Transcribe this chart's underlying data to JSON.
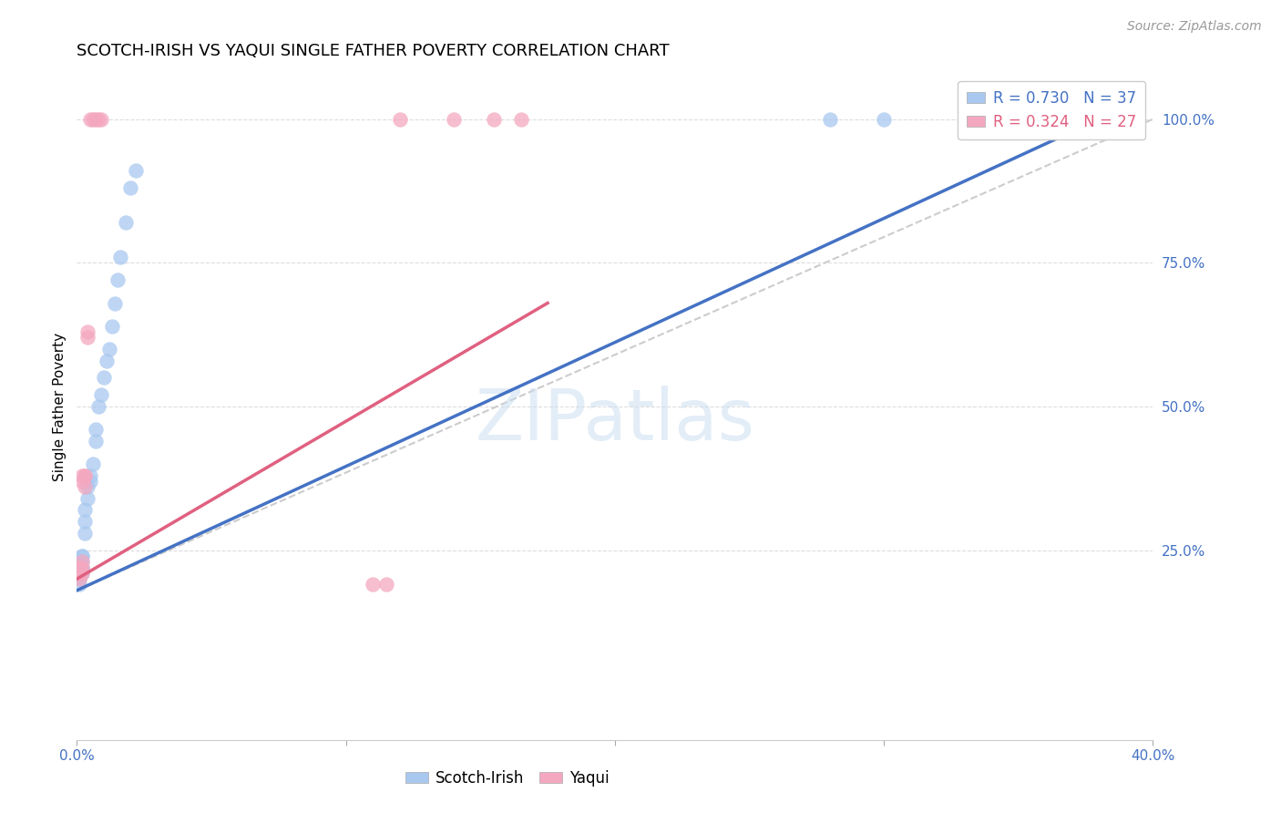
{
  "title": "SCOTCH-IRISH VS YAQUI SINGLE FATHER POVERTY CORRELATION CHART",
  "source": "Source: ZipAtlas.com",
  "ylabel": "Single Father Poverty",
  "legend_blue": {
    "R": 0.73,
    "N": 37,
    "label": "Scotch-Irish"
  },
  "legend_pink": {
    "R": 0.324,
    "N": 27,
    "label": "Yaqui"
  },
  "blue_color": "#A8C8F0",
  "pink_color": "#F4A8C0",
  "line_blue": "#4472C4",
  "line_pink": "#E06080",
  "diag_color": "#CCCCCC",
  "watermark": "ZIPatlas",
  "blue_points": [
    [
      0.001,
      0.22
    ],
    [
      0.001,
      0.23
    ],
    [
      0.001,
      0.22
    ],
    [
      0.001,
      0.21
    ],
    [
      0.001,
      0.2
    ],
    [
      0.001,
      0.19
    ],
    [
      0.002,
      0.21
    ],
    [
      0.002,
      0.22
    ],
    [
      0.002,
      0.23
    ],
    [
      0.002,
      0.24
    ],
    [
      0.002,
      0.24
    ],
    [
      0.002,
      0.22
    ],
    [
      0.003,
      0.28
    ],
    [
      0.003,
      0.3
    ],
    [
      0.003,
      0.32
    ],
    [
      0.004,
      0.34
    ],
    [
      0.004,
      0.36
    ],
    [
      0.005,
      0.37
    ],
    [
      0.005,
      0.38
    ],
    [
      0.006,
      0.4
    ],
    [
      0.007,
      0.44
    ],
    [
      0.007,
      0.46
    ],
    [
      0.008,
      0.5
    ],
    [
      0.009,
      0.52
    ],
    [
      0.01,
      0.55
    ],
    [
      0.011,
      0.58
    ],
    [
      0.012,
      0.6
    ],
    [
      0.013,
      0.64
    ],
    [
      0.014,
      0.68
    ],
    [
      0.015,
      0.72
    ],
    [
      0.016,
      0.76
    ],
    [
      0.018,
      0.82
    ],
    [
      0.02,
      0.88
    ],
    [
      0.022,
      0.91
    ],
    [
      0.28,
      1.0
    ],
    [
      0.3,
      1.0
    ],
    [
      0.38,
      1.0
    ]
  ],
  "pink_points": [
    [
      0.001,
      0.22
    ],
    [
      0.001,
      0.21
    ],
    [
      0.001,
      0.2
    ],
    [
      0.001,
      0.22
    ],
    [
      0.001,
      0.21
    ],
    [
      0.001,
      0.22
    ],
    [
      0.002,
      0.22
    ],
    [
      0.002,
      0.23
    ],
    [
      0.002,
      0.21
    ],
    [
      0.002,
      0.38
    ],
    [
      0.002,
      0.37
    ],
    [
      0.003,
      0.38
    ],
    [
      0.003,
      0.36
    ],
    [
      0.003,
      0.38
    ],
    [
      0.004,
      0.62
    ],
    [
      0.004,
      0.63
    ],
    [
      0.005,
      1.0
    ],
    [
      0.006,
      1.0
    ],
    [
      0.007,
      1.0
    ],
    [
      0.008,
      1.0
    ],
    [
      0.009,
      1.0
    ],
    [
      0.11,
      0.19
    ],
    [
      0.115,
      0.19
    ],
    [
      0.12,
      1.0
    ],
    [
      0.14,
      1.0
    ],
    [
      0.155,
      1.0
    ],
    [
      0.165,
      1.0
    ]
  ],
  "blue_line": [
    [
      0.0,
      0.18
    ],
    [
      0.38,
      1.0
    ]
  ],
  "pink_line": [
    [
      0.0,
      0.2
    ],
    [
      0.175,
      0.68
    ]
  ],
  "xlim": [
    0.0,
    0.4
  ],
  "ylim": [
    -0.08,
    1.08
  ],
  "xticks": [
    0.0,
    0.4
  ],
  "xticklabels": [
    "0.0%",
    "40.0%"
  ],
  "yticks": [
    0.25,
    0.5,
    0.75,
    1.0
  ],
  "yticklabels": [
    "25.0%",
    "50.0%",
    "75.0%",
    "100.0%"
  ],
  "grid_color": "#DDDDDD",
  "title_fontsize": 13,
  "tick_fontsize": 11,
  "source_fontsize": 10
}
